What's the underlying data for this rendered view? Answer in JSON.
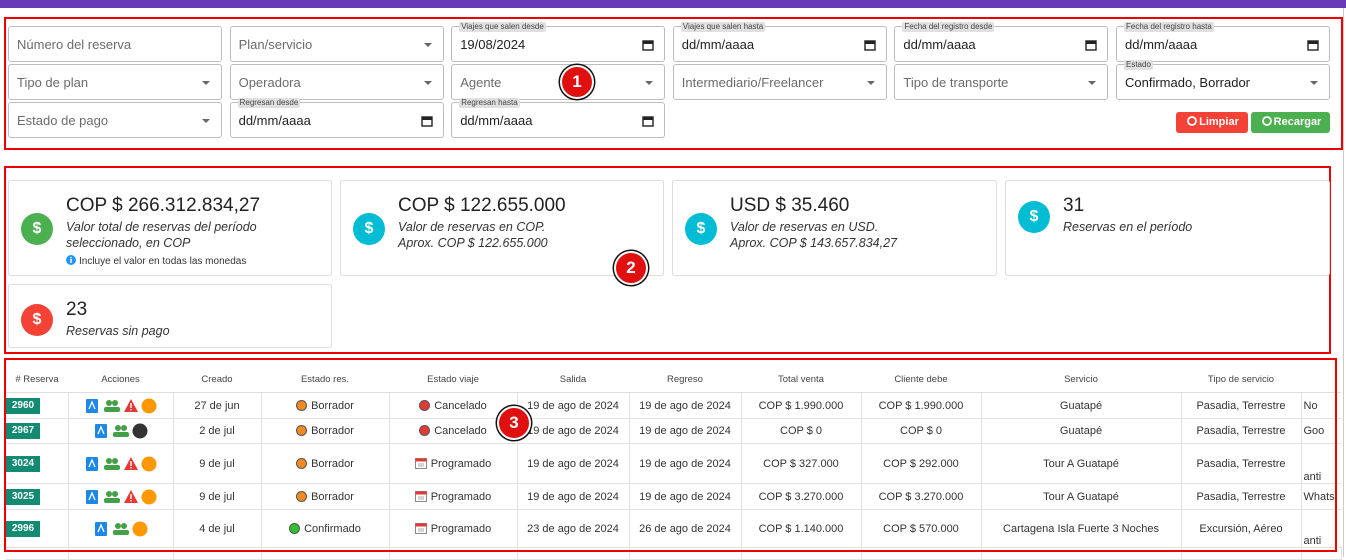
{
  "header": {
    "filters": [
      {
        "placeholder": "Número del reserva",
        "kind": "text"
      },
      {
        "placeholder": "Plan/servicio",
        "kind": "select"
      },
      {
        "label": "Viajes que salen desde",
        "value": "19/08/2024",
        "kind": "date"
      },
      {
        "label": "Viajes que salen hasta",
        "value": "dd/mm/aaaa",
        "kind": "date"
      },
      {
        "label": "Fecha del registro desde",
        "value": "dd/mm/aaaa",
        "kind": "date"
      },
      {
        "label": "Fecha del registro hasta",
        "value": "dd/mm/aaaa",
        "kind": "date"
      },
      {
        "placeholder": "Tipo de plan",
        "kind": "select"
      },
      {
        "placeholder": "Operadora",
        "kind": "select"
      },
      {
        "placeholder": "Agente",
        "kind": "select"
      },
      {
        "placeholder": "Intermediario/Freelancer",
        "kind": "select"
      },
      {
        "placeholder": "Tipo de transporte",
        "kind": "select"
      },
      {
        "label": "Estado",
        "value": "Confirmado, Borrador",
        "kind": "select"
      },
      {
        "placeholder": "Estado de pago",
        "kind": "select"
      },
      {
        "label": "Regresan desde",
        "value": "dd/mm/aaaa",
        "kind": "date"
      },
      {
        "label": "Regresan hasta",
        "value": "dd/mm/aaaa",
        "kind": "date"
      }
    ],
    "buttons": [
      {
        "text": "Limpiar",
        "color": "#f44336"
      },
      {
        "text": "Recargar",
        "color": "#4caf50"
      }
    ]
  },
  "annotations": [
    "1",
    "2",
    "3"
  ],
  "summary": {
    "icon": "$",
    "cards": [
      {
        "value": "COP $ 266.312.834,27",
        "lines": [
          "Valor total de reservas del período seleccionado, en COP"
        ],
        "note": "Incluye el valor en todas las monedas",
        "color": "#4caf50"
      },
      {
        "value": "COP $ 122.655.000",
        "lines": [
          "Valor de reservas en COP.",
          "Aprox. COP $ 122.655.000"
        ],
        "color": "#00bcd4"
      },
      {
        "value": "USD $ 35.460",
        "lines": [
          "Valor de reservas en USD.",
          "Aprox. COP $ 143.657.834,27"
        ],
        "color": "#00bcd4"
      },
      {
        "value": "31",
        "lines": [
          "Reservas en el período"
        ],
        "color": "#00bcd4"
      },
      {
        "value": "23",
        "lines": [
          "Reservas sin pago"
        ],
        "color": "#f44336"
      }
    ]
  },
  "table": {
    "headers": [
      "# Reserva",
      "Acciones",
      "Creado",
      "Estado res.",
      "Estado viaje",
      "Salida",
      "Regreso",
      "Total venta",
      "Cliente debe",
      "Servicio",
      "Tipo de servicio"
    ],
    "rows": [
      {
        "id": "2960",
        "actions": [
          "pdf",
          "group",
          "warning",
          "pending"
        ],
        "created": "27 de jun",
        "status": "Borrador",
        "status_color": "#f08a24",
        "trip": "Cancelado",
        "trip_kind": "dot",
        "departure": "19 de ago de 2024",
        "return": "19 de ago de 2024",
        "total": "COP $ 1.990.000",
        "due": "COP $ 1.990.000",
        "service": "Guatapé",
        "service_type": "Pasadia, Terrestre",
        "extra": "No"
      },
      {
        "id": "2967",
        "actions": [
          "pdf",
          "group",
          "dark"
        ],
        "created": "2 de jul",
        "status": "Borrador",
        "status_color": "#f08a24",
        "trip": "Cancelado",
        "trip_kind": "dot",
        "departure": "19 de ago de 2024",
        "return": "19 de ago de 2024",
        "total": "COP $ 0",
        "due": "COP $ 0",
        "service": "Guatapé",
        "service_type": "Pasadia, Terrestre",
        "extra": "Goo"
      },
      {
        "id": "3024",
        "actions": [
          "pdf",
          "group",
          "warning",
          "pending"
        ],
        "created": "9 de jul",
        "status": "Borrador",
        "status_color": "#f08a24",
        "trip": "Programado",
        "trip_kind": "calendar",
        "departure": "19 de ago de 2024",
        "return": "19 de ago de 2024",
        "total": "COP $ 327.000",
        "due": "COP $ 292.000",
        "service": "Tour A Guatapé",
        "service_type": "Pasadia, Terrestre",
        "extra": "anti"
      },
      {
        "id": "3025",
        "actions": [
          "pdf",
          "group",
          "warning",
          "pending"
        ],
        "created": "9 de jul",
        "status": "Borrador",
        "status_color": "#f08a24",
        "trip": "Programado",
        "trip_kind": "calendar",
        "departure": "19 de ago de 2024",
        "return": "19 de ago de 2024",
        "total": "COP $ 3.270.000",
        "due": "COP $ 3.270.000",
        "service": "Tour A Guatapé",
        "service_type": "Pasadia, Terrestre",
        "extra": "Whats"
      },
      {
        "id": "2996",
        "actions": [
          "pdf",
          "group",
          "pending"
        ],
        "created": "4 de jul",
        "status": "Confirmado",
        "status_color": "#2ec22e",
        "trip": "Programado",
        "trip_kind": "calendar",
        "departure": "23 de ago de 2024",
        "return": "26 de ago de 2024",
        "total": "COP $ 1.140.000",
        "due": "COP $ 570.000",
        "service": "Cartagena Isla Fuerte 3 Noches",
        "service_type": "Excursión, Aéreo",
        "extra": "anti"
      }
    ]
  }
}
